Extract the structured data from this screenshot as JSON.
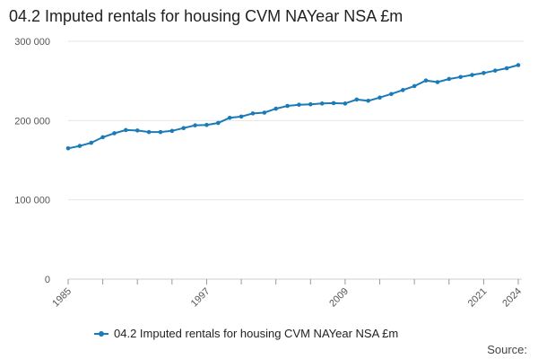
{
  "title": "04.2 Imputed rentals for housing CVM NAYear NSA £m",
  "source_label": "Source:",
  "colors": {
    "series": "#1a7bb8",
    "grid": "#e6e6e6",
    "axis": "#555555"
  },
  "chart_data": {
    "type": "line",
    "title": "04.2 Imputed rentals for housing CVM NAYear NSA £m",
    "xlabel": "",
    "ylabel": "",
    "ylim": [
      0,
      300000
    ],
    "y_ticks": [
      {
        "value": 0,
        "label": "0"
      },
      {
        "value": 100000,
        "label": "100 000"
      },
      {
        "value": 200000,
        "label": "200 000"
      },
      {
        "value": 300000,
        "label": "300 000"
      }
    ],
    "x_tick_labels": [
      "1985",
      "1997",
      "2009",
      "2021",
      "2024"
    ],
    "grid": true,
    "legend": "bottom",
    "series": [
      {
        "name": "04.2 Imputed rentals for housing CVM NAYear NSA £m",
        "x": [
          1985,
          1986,
          1987,
          1988,
          1989,
          1990,
          1991,
          1992,
          1993,
          1994,
          1995,
          1996,
          1997,
          1998,
          1999,
          2000,
          2001,
          2002,
          2003,
          2004,
          2005,
          2006,
          2007,
          2008,
          2009,
          2010,
          2011,
          2012,
          2013,
          2014,
          2015,
          2016,
          2017,
          2018,
          2019,
          2020,
          2021,
          2022,
          2023,
          2024
        ],
        "values": [
          165000,
          168000,
          172000,
          179000,
          184000,
          188000,
          187500,
          185500,
          185500,
          187000,
          190500,
          194000,
          194500,
          197000,
          203500,
          205000,
          209000,
          210000,
          215000,
          218500,
          220000,
          220500,
          221500,
          222000,
          221500,
          226500,
          225000,
          229000,
          233500,
          238500,
          243500,
          250500,
          248500,
          252500,
          255000,
          257500,
          260000,
          263000,
          266000,
          270000
        ]
      }
    ]
  }
}
